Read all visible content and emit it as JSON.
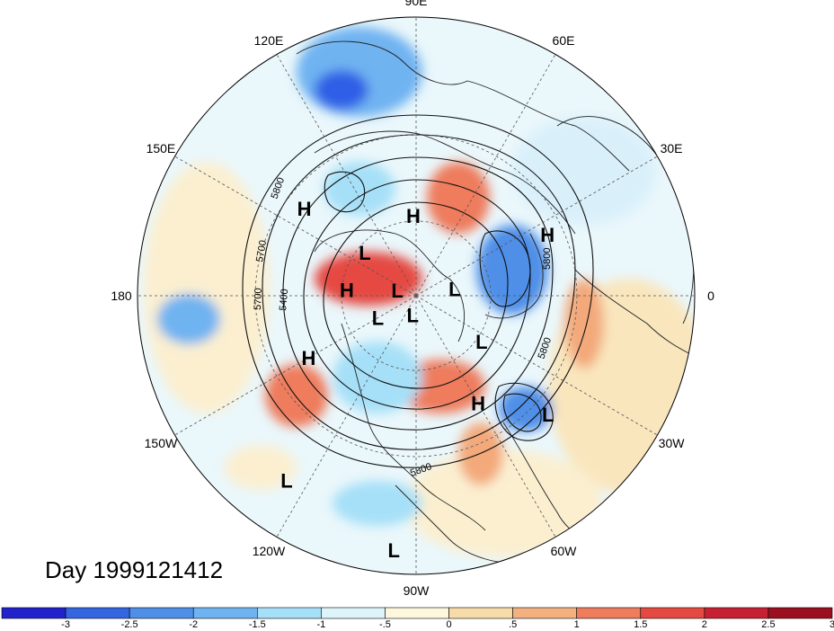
{
  "map": {
    "projection": "north-polar-stereographic",
    "longitude_labels": [
      {
        "text": "90E",
        "lon": 90
      },
      {
        "text": "60E",
        "lon": 60
      },
      {
        "text": "30E",
        "lon": 30
      },
      {
        "text": "0",
        "lon": 0
      },
      {
        "text": "30W",
        "lon": -30
      },
      {
        "text": "60W",
        "lon": -60
      },
      {
        "text": "90W",
        "lon": -90
      },
      {
        "text": "120W",
        "lon": -120
      },
      {
        "text": "150W",
        "lon": -150
      },
      {
        "text": "180",
        "lon": 180
      },
      {
        "text": "150E",
        "lon": 150
      },
      {
        "text": "120E",
        "lon": 120
      }
    ],
    "pressure_centers": [
      {
        "type": "H",
        "lon": 92,
        "lat": 58
      },
      {
        "type": "L",
        "lon": 140,
        "lat": 63
      },
      {
        "type": "H",
        "lon": 142,
        "lat": 36
      },
      {
        "type": "H",
        "lon": 175,
        "lat": 62
      },
      {
        "type": "L",
        "lon": 10,
        "lat": 74
      },
      {
        "type": "L",
        "lon": 164,
        "lat": 82
      },
      {
        "type": "H",
        "lon": 25,
        "lat": 35
      },
      {
        "type": "L",
        "lon": -150,
        "lat": 72
      },
      {
        "type": "L",
        "lon": -100,
        "lat": 82
      },
      {
        "type": "L",
        "lon": -35,
        "lat": 58
      },
      {
        "type": "H",
        "lon": -150,
        "lat": 42
      },
      {
        "type": "H",
        "lon": -60,
        "lat": 42
      },
      {
        "type": "L",
        "lon": -42,
        "lat": 25
      },
      {
        "type": "L",
        "lon": -125,
        "lat": 12
      },
      {
        "type": "L",
        "lon": -95,
        "lat": 5
      }
    ],
    "contour_labels": [
      "5800",
      "5700",
      "5400",
      "5700",
      "5800",
      "5800",
      "5800"
    ],
    "anomaly_colors": {
      "-3": "#1f1fd6",
      "-2.5": "#2f5fe6",
      "-2": "#4a8ff0",
      "-1.5": "#6fb0f4",
      "-1": "#a9dcf7",
      "-0.5": "#def5fb",
      "0.5": "#fdf3d2",
      "1": "#f8dca5",
      "1.5": "#f3a97a",
      "2": "#ec6b55",
      "2.5": "#e03a3a",
      "3": "#b71c2a"
    }
  },
  "day_label": "Day 1999121412",
  "colorbar": {
    "ticks": [
      "-3",
      "-2.5",
      "-2",
      "-1.5",
      "-1",
      "-.5",
      "0",
      ".5",
      "1",
      "1.5",
      "2",
      "2.5",
      "3"
    ],
    "colors": [
      "#2222cc",
      "#3366e0",
      "#4f8fe8",
      "#6fb3f1",
      "#a6e0f8",
      "#ddf4fb",
      "#fdf7de",
      "#f7dba8",
      "#f3b180",
      "#ee7c5d",
      "#e54a42",
      "#c72033",
      "#9c0f20"
    ]
  }
}
